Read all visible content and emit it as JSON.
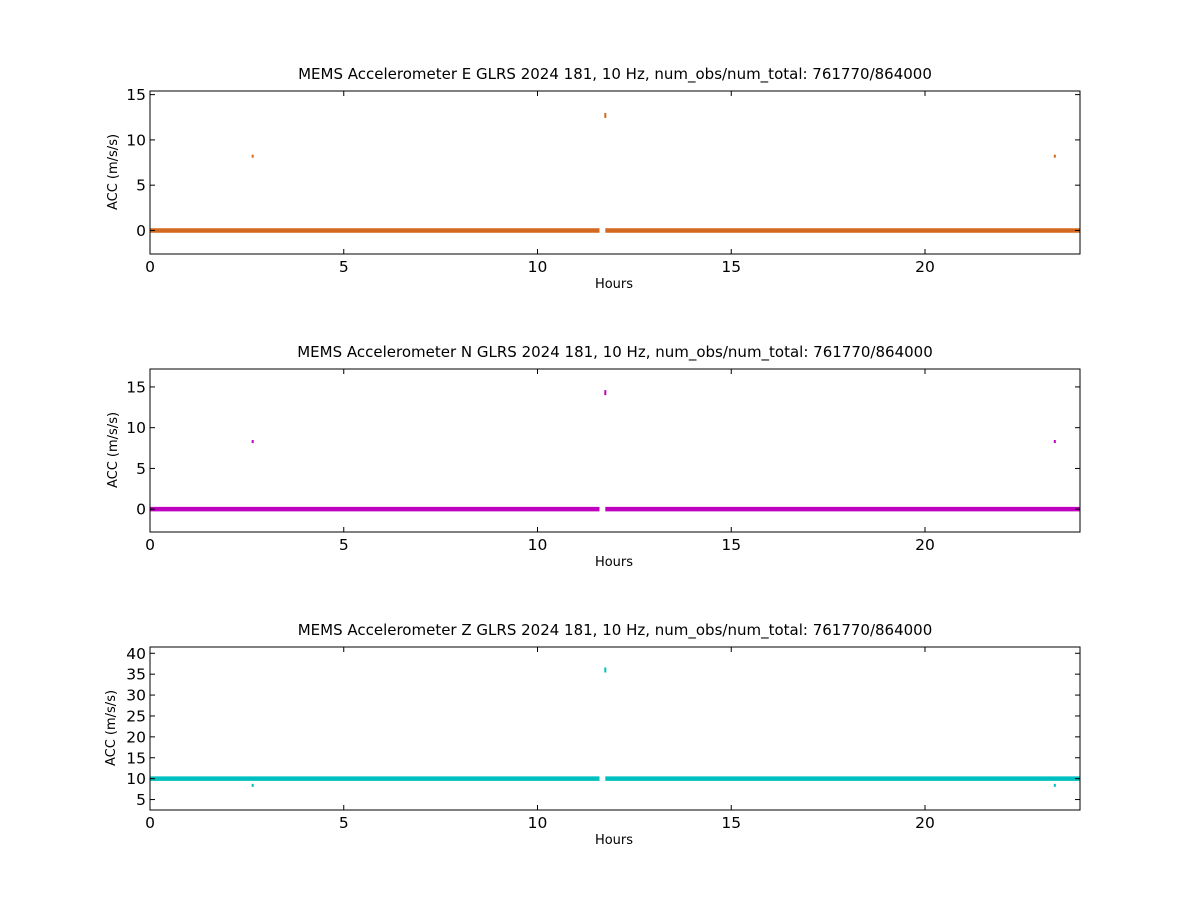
{
  "chart_data": [
    {
      "type": "scatter",
      "title": "MEMS Accelerometer E GLRS 2024 181, 10 Hz, num_obs/num_total: 761770/864000",
      "xlabel": "Hours",
      "ylabel": "ACC (m/s/s)",
      "xlim": [
        0,
        24
      ],
      "ylim": [
        -2.6,
        15.4
      ],
      "xticks": [
        0,
        5,
        10,
        15,
        20
      ],
      "yticks": [
        0,
        5,
        10,
        15
      ],
      "grid": false,
      "color": "#d2691e",
      "baseline": {
        "x_start": 0,
        "x_end": 24,
        "y": 0.0,
        "gap": [
          11.6,
          11.75
        ]
      },
      "series": [
        {
          "values": [
            {
              "x": 2.65,
              "y": 8.2
            },
            {
              "x": 11.75,
              "y": 12.7
            },
            {
              "x": 23.35,
              "y": 8.2
            }
          ]
        }
      ]
    },
    {
      "type": "scatter",
      "title": "MEMS Accelerometer N GLRS 2024 181, 10 Hz, num_obs/num_total: 761770/864000",
      "xlabel": "Hours",
      "ylabel": "ACC (m/s/s)",
      "xlim": [
        0,
        24
      ],
      "ylim": [
        -2.8,
        17.2
      ],
      "xticks": [
        0,
        5,
        10,
        15,
        20
      ],
      "yticks": [
        0,
        5,
        10,
        15
      ],
      "grid": false,
      "color": "#bf00bf",
      "baseline": {
        "x_start": 0,
        "x_end": 24,
        "y": 0.0,
        "gap": [
          11.6,
          11.75
        ]
      },
      "series": [
        {
          "values": [
            {
              "x": 2.65,
              "y": 8.3
            },
            {
              "x": 11.75,
              "y": 14.3
            },
            {
              "x": 23.35,
              "y": 8.3
            }
          ]
        }
      ]
    },
    {
      "type": "scatter",
      "title": "MEMS Accelerometer Z GLRS 2024 181, 10 Hz, num_obs/num_total: 761770/864000",
      "xlabel": "Hours",
      "ylabel": "ACC (m/s/s)",
      "xlim": [
        0,
        24
      ],
      "ylim": [
        2.5,
        41.5
      ],
      "xticks": [
        0,
        5,
        10,
        15,
        20
      ],
      "yticks": [
        5,
        10,
        15,
        20,
        25,
        30,
        35,
        40
      ],
      "grid": false,
      "color": "#00bfbf",
      "baseline": {
        "x_start": 0,
        "x_end": 24,
        "y": 10.0,
        "gap": [
          11.6,
          11.75
        ]
      },
      "series": [
        {
          "values": [
            {
              "x": 2.65,
              "y": 8.4
            },
            {
              "x": 11.75,
              "y": 36.0
            },
            {
              "x": 23.35,
              "y": 8.4
            }
          ]
        }
      ]
    }
  ]
}
